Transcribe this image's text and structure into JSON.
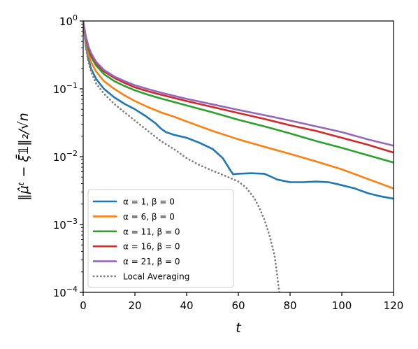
{
  "chart_data": {
    "type": "line",
    "xlabel": "t",
    "ylabel": "‖μ̂ᵗ − ξ̄𝟙‖₂/√n",
    "xlim": [
      0,
      120
    ],
    "ylim": [
      0.0001,
      1
    ],
    "yscale": "log",
    "grid": false,
    "legend_position": "lower-left",
    "x_ticks": [
      0,
      20,
      40,
      60,
      80,
      100,
      120
    ],
    "y_ticks": [
      {
        "value": 1,
        "base": "10",
        "exp": "0"
      },
      {
        "value": 0.1,
        "base": "10",
        "exp": "−1"
      },
      {
        "value": 0.01,
        "base": "10",
        "exp": "−2"
      },
      {
        "value": 0.001,
        "base": "10",
        "exp": "−3"
      },
      {
        "value": 0.0001,
        "base": "10",
        "exp": "−4"
      }
    ],
    "series": [
      {
        "name": "α = 1, β = 0",
        "color": "#1f77b4",
        "dash": "solid",
        "points": [
          [
            0,
            1
          ],
          [
            1,
            0.45
          ],
          [
            2,
            0.28
          ],
          [
            3,
            0.2
          ],
          [
            5,
            0.14
          ],
          [
            8,
            0.1
          ],
          [
            12,
            0.075
          ],
          [
            16,
            0.06
          ],
          [
            20,
            0.05
          ],
          [
            24,
            0.04
          ],
          [
            28,
            0.031
          ],
          [
            30,
            0.026
          ],
          [
            32,
            0.023
          ],
          [
            35,
            0.021
          ],
          [
            40,
            0.019
          ],
          [
            45,
            0.016
          ],
          [
            50,
            0.013
          ],
          [
            54,
            0.0095
          ],
          [
            57,
            0.0062
          ],
          [
            58,
            0.0055
          ],
          [
            60,
            0.0056
          ],
          [
            65,
            0.0057
          ],
          [
            70,
            0.0056
          ],
          [
            72,
            0.0052
          ],
          [
            75,
            0.0046
          ],
          [
            80,
            0.0042
          ],
          [
            85,
            0.0042
          ],
          [
            90,
            0.0043
          ],
          [
            95,
            0.0042
          ],
          [
            100,
            0.0038
          ],
          [
            105,
            0.0034
          ],
          [
            110,
            0.0029
          ],
          [
            115,
            0.0026
          ],
          [
            120,
            0.0024
          ]
        ]
      },
      {
        "name": "α = 6, β = 0",
        "color": "#ff7f0e",
        "dash": "solid",
        "points": [
          [
            0,
            1
          ],
          [
            1,
            0.5
          ],
          [
            2,
            0.33
          ],
          [
            3,
            0.25
          ],
          [
            5,
            0.18
          ],
          [
            8,
            0.13
          ],
          [
            12,
            0.1
          ],
          [
            16,
            0.08
          ],
          [
            20,
            0.066
          ],
          [
            25,
            0.054
          ],
          [
            30,
            0.045
          ],
          [
            35,
            0.039
          ],
          [
            40,
            0.033
          ],
          [
            50,
            0.024
          ],
          [
            60,
            0.018
          ],
          [
            70,
            0.014
          ],
          [
            80,
            0.011
          ],
          [
            90,
            0.0085
          ],
          [
            100,
            0.0065
          ],
          [
            110,
            0.0047
          ],
          [
            120,
            0.0034
          ]
        ]
      },
      {
        "name": "α = 11, β = 0",
        "color": "#2ca02c",
        "dash": "solid",
        "points": [
          [
            0,
            1
          ],
          [
            1,
            0.55
          ],
          [
            2,
            0.38
          ],
          [
            3,
            0.3
          ],
          [
            5,
            0.22
          ],
          [
            8,
            0.165
          ],
          [
            12,
            0.13
          ],
          [
            16,
            0.11
          ],
          [
            20,
            0.095
          ],
          [
            25,
            0.082
          ],
          [
            30,
            0.072
          ],
          [
            40,
            0.057
          ],
          [
            50,
            0.045
          ],
          [
            60,
            0.035
          ],
          [
            70,
            0.028
          ],
          [
            80,
            0.022
          ],
          [
            90,
            0.017
          ],
          [
            100,
            0.0135
          ],
          [
            110,
            0.0105
          ],
          [
            120,
            0.0082
          ]
        ]
      },
      {
        "name": "α = 16, β = 0",
        "color": "#d62728",
        "dash": "solid",
        "points": [
          [
            0,
            1
          ],
          [
            1,
            0.58
          ],
          [
            2,
            0.41
          ],
          [
            3,
            0.32
          ],
          [
            5,
            0.24
          ],
          [
            8,
            0.18
          ],
          [
            12,
            0.145
          ],
          [
            16,
            0.122
          ],
          [
            20,
            0.105
          ],
          [
            25,
            0.092
          ],
          [
            30,
            0.082
          ],
          [
            40,
            0.066
          ],
          [
            50,
            0.054
          ],
          [
            60,
            0.044
          ],
          [
            70,
            0.036
          ],
          [
            80,
            0.029
          ],
          [
            90,
            0.024
          ],
          [
            100,
            0.019
          ],
          [
            110,
            0.015
          ],
          [
            120,
            0.0115
          ]
        ]
      },
      {
        "name": "α = 21, β = 0",
        "color": "#9467bd",
        "dash": "solid",
        "points": [
          [
            0,
            1
          ],
          [
            1,
            0.6
          ],
          [
            2,
            0.43
          ],
          [
            3,
            0.34
          ],
          [
            5,
            0.25
          ],
          [
            8,
            0.19
          ],
          [
            12,
            0.152
          ],
          [
            16,
            0.13
          ],
          [
            20,
            0.113
          ],
          [
            25,
            0.099
          ],
          [
            30,
            0.088
          ],
          [
            40,
            0.071
          ],
          [
            50,
            0.059
          ],
          [
            60,
            0.049
          ],
          [
            70,
            0.041
          ],
          [
            80,
            0.034
          ],
          [
            90,
            0.028
          ],
          [
            100,
            0.023
          ],
          [
            110,
            0.018
          ],
          [
            120,
            0.0145
          ]
        ]
      },
      {
        "name": "Local Averaging",
        "color": "#7f7f7f",
        "dash": "dotted",
        "points": [
          [
            0,
            1
          ],
          [
            1,
            0.4
          ],
          [
            2,
            0.25
          ],
          [
            3,
            0.18
          ],
          [
            5,
            0.12
          ],
          [
            8,
            0.085
          ],
          [
            12,
            0.06
          ],
          [
            16,
            0.045
          ],
          [
            20,
            0.034
          ],
          [
            25,
            0.024
          ],
          [
            30,
            0.017
          ],
          [
            35,
            0.013
          ],
          [
            40,
            0.0095
          ],
          [
            45,
            0.0075
          ],
          [
            50,
            0.0062
          ],
          [
            55,
            0.0052
          ],
          [
            60,
            0.0043
          ],
          [
            63,
            0.0035
          ],
          [
            66,
            0.0025
          ],
          [
            68,
            0.0018
          ],
          [
            70,
            0.0012
          ],
          [
            72,
            0.0007
          ],
          [
            74,
            0.00035
          ],
          [
            75,
            0.00018
          ],
          [
            75.8,
            0.0001
          ]
        ]
      }
    ]
  }
}
